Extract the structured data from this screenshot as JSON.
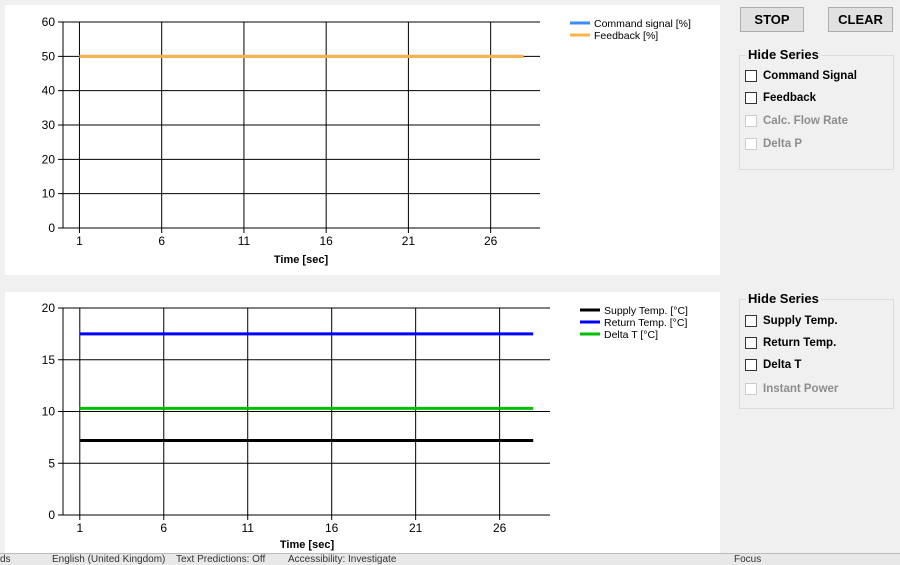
{
  "controls": {
    "stop_label": "STOP",
    "clear_label": "CLEAR"
  },
  "hide_series_1": {
    "title": "Hide Series",
    "items": [
      {
        "label": "Command Signal",
        "checked": false,
        "enabled": true
      },
      {
        "label": "Feedback",
        "checked": false,
        "enabled": true
      },
      {
        "label": "Calc. Flow Rate",
        "checked": false,
        "enabled": false
      },
      {
        "label": "Delta P",
        "checked": false,
        "enabled": false
      }
    ]
  },
  "hide_series_2": {
    "title": "Hide Series",
    "items": [
      {
        "label": "Supply Temp.",
        "checked": false,
        "enabled": true
      },
      {
        "label": "Return Temp.",
        "checked": false,
        "enabled": true
      },
      {
        "label": "Delta T",
        "checked": false,
        "enabled": true
      },
      {
        "label": "Instant Power",
        "checked": false,
        "enabled": false
      }
    ]
  },
  "chart_data": [
    {
      "type": "line",
      "xlabel": "Time [sec]",
      "ylabel": "",
      "xlim": [
        0,
        29
      ],
      "ylim": [
        0,
        60
      ],
      "xticks": [
        1,
        6,
        11,
        16,
        21,
        26
      ],
      "yticks": [
        0,
        10,
        20,
        30,
        40,
        50,
        60
      ],
      "grid": true,
      "legend": "top-right",
      "series": [
        {
          "name": "Command signal [%]",
          "color": "#3c8df0",
          "x": [
            1,
            28
          ],
          "y": [
            50,
            50
          ]
        },
        {
          "name": "Feedback [%]",
          "color": "#ffb347",
          "x": [
            1,
            28
          ],
          "y": [
            50,
            50
          ]
        }
      ]
    },
    {
      "type": "line",
      "xlabel": "Time [sec]",
      "ylabel": "",
      "xlim": [
        0,
        29
      ],
      "ylim": [
        0,
        20
      ],
      "xticks": [
        1,
        6,
        11,
        16,
        21,
        26
      ],
      "yticks": [
        0,
        5,
        10,
        15,
        20
      ],
      "grid": true,
      "legend": "top-right",
      "series": [
        {
          "name": "Supply Temp. [°C]",
          "color": "#000000",
          "x": [
            1,
            28
          ],
          "y": [
            7.2,
            7.2
          ]
        },
        {
          "name": "Return Temp. [°C]",
          "color": "#0000ff",
          "x": [
            1,
            28
          ],
          "y": [
            17.5,
            17.5
          ]
        },
        {
          "name": "Delta T [°C]",
          "color": "#00c000",
          "x": [
            1,
            28
          ],
          "y": [
            10.3,
            10.3
          ]
        }
      ]
    }
  ],
  "taskbar": {
    "items": [
      "ds",
      "English (United Kingdom)",
      "Text Predictions: Off",
      "Accessibility: Investigate",
      "Focus"
    ]
  }
}
